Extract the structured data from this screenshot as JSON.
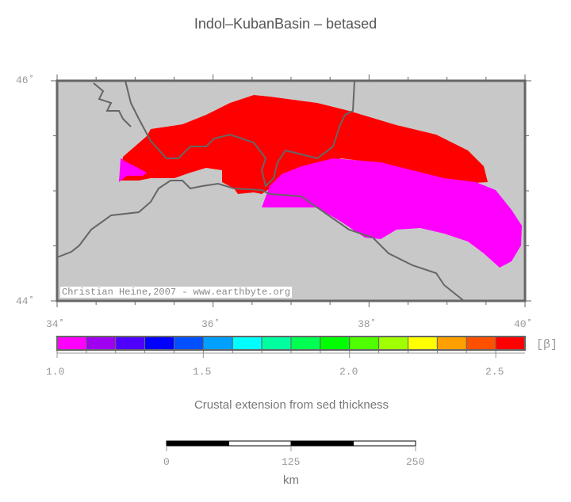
{
  "title": "Indol–KubanBasin – betased",
  "map": {
    "lat_labels": [
      "46˚",
      "44˚"
    ],
    "lon_labels": [
      "34˚",
      "36˚",
      "38˚",
      "40˚"
    ],
    "lon_range": [
      34,
      40
    ],
    "lat_range": [
      44,
      46
    ],
    "background_color": "#c8c8c8",
    "credit": "Christian Heine,2007 - www.earthbyte.org"
  },
  "colorbar": {
    "unit": "[β]",
    "range": [
      1.0,
      2.6
    ],
    "tick_labels": [
      "1.0",
      "1.5",
      "2.0",
      "2.5"
    ],
    "colors": [
      "#ff00ff",
      "#a000f0",
      "#5000ff",
      "#0000ff",
      "#0050ff",
      "#00a0ff",
      "#00ffff",
      "#00ffa0",
      "#00ff50",
      "#00ff00",
      "#50ff00",
      "#a0ff00",
      "#ffff00",
      "#ffa000",
      "#ff5000",
      "#ff0000"
    ],
    "title": "Crustal extension from sed thickness"
  },
  "scalebar": {
    "labels": [
      "0",
      "125",
      "250"
    ],
    "unit": "km"
  }
}
